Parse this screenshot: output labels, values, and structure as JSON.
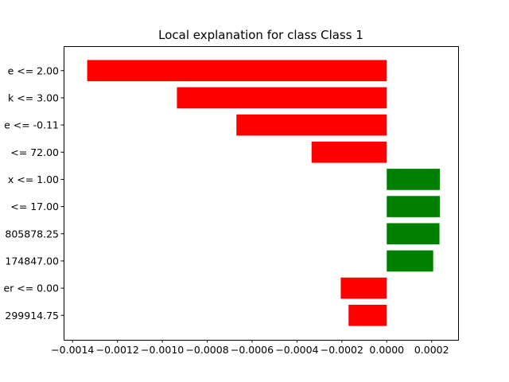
{
  "chart_data": {
    "type": "bar",
    "orientation": "horizontal",
    "title": "Local explanation for class Class 1",
    "xlabel": "",
    "ylabel": "",
    "categories": [
      "e <= 2.00",
      "k <= 3.00",
      "e <= -0.11",
      "<= 72.00",
      "x <= 1.00",
      "<= 17.00",
      "805878.25",
      "174847.00",
      "er <= 0.00",
      "299914.75"
    ],
    "values": [
      -0.001335,
      -0.000935,
      -0.00067,
      -0.000335,
      0.000237,
      0.000237,
      0.000235,
      0.000207,
      -0.000205,
      -0.00017
    ],
    "xlim": [
      -0.00144,
      0.000318
    ],
    "xticks": [
      -0.0014,
      -0.0012,
      -0.001,
      -0.0008,
      -0.0006,
      -0.0004,
      -0.0002,
      0.0,
      0.0002
    ],
    "xtick_labels": [
      "−0.0014",
      "−0.0012",
      "−0.0010",
      "−0.0008",
      "−0.0006",
      "−0.0004",
      "−0.0002",
      "0.0000",
      "0.0002"
    ],
    "colors": {
      "positive": "#008000",
      "negative": "#ff0000",
      "axis": "#000000"
    },
    "grid": false,
    "legend": "none"
  }
}
